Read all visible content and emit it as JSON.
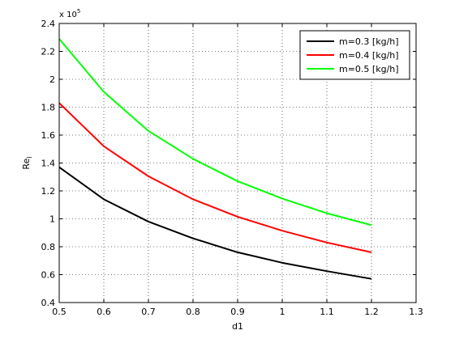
{
  "chart_data": {
    "type": "line",
    "xlabel": "d1",
    "ylabel": "Re",
    "ylabel_subscript": "l",
    "y_multiplier_text": "x 10",
    "y_multiplier_exp": "5",
    "xlim": [
      0.5,
      1.3
    ],
    "ylim": [
      0.4,
      2.4
    ],
    "xticks": [
      "0.5",
      "0.6",
      "0.7",
      "0.8",
      "0.9",
      "1",
      "1.1",
      "1.2",
      "1.3"
    ],
    "yticks": [
      "0.4",
      "0.6",
      "0.8",
      "1",
      "1.2",
      "1.4",
      "1.6",
      "1.8",
      "2",
      "2.2",
      "2.4"
    ],
    "grid": true,
    "legend_position": "top-right",
    "x": [
      0.5,
      0.6,
      0.7,
      0.8,
      0.9,
      1.0,
      1.1,
      1.2
    ],
    "series": [
      {
        "name": "m=0.3 [kg/h]",
        "color": "#000000",
        "values": [
          1.37,
          1.14,
          0.98,
          0.86,
          0.76,
          0.685,
          0.625,
          0.57
        ]
      },
      {
        "name": "m=0.4 [kg/h]",
        "color": "#ff0000",
        "values": [
          1.83,
          1.52,
          1.305,
          1.14,
          1.015,
          0.915,
          0.83,
          0.76
        ]
      },
      {
        "name": "m=0.5 [kg/h]",
        "color": "#00ff00",
        "values": [
          2.29,
          1.91,
          1.63,
          1.43,
          1.27,
          1.145,
          1.04,
          0.955
        ]
      }
    ]
  }
}
